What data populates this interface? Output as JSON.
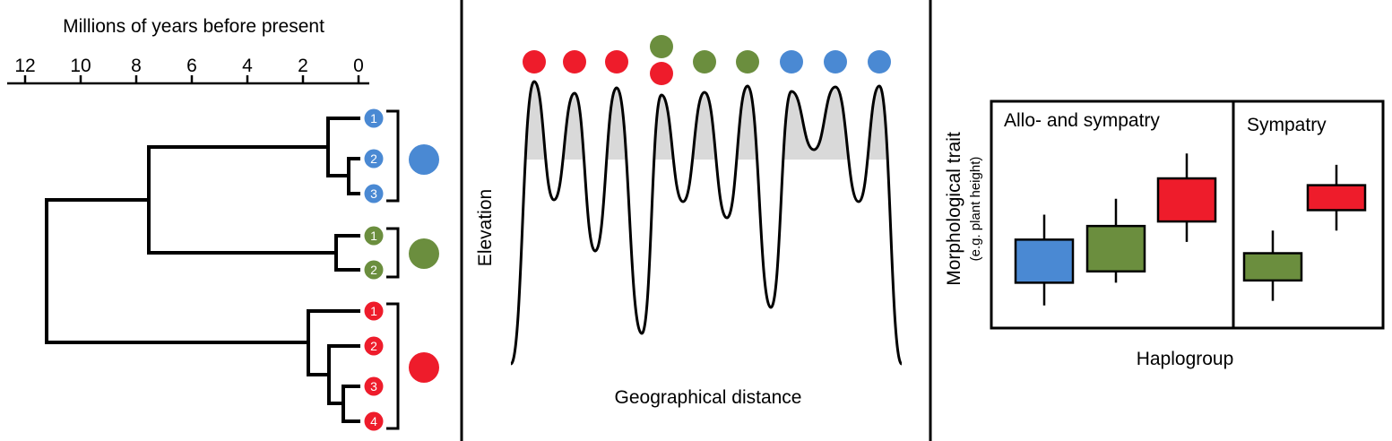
{
  "colors": {
    "blue": "#4a89d3",
    "green": "#6b8e3e",
    "red": "#ee1c2b",
    "ridge_fill": "#d9d9d9",
    "line": "#000000"
  },
  "tree": {
    "axis_title": "Millions of years before present",
    "axis_ticks": [
      "12",
      "10",
      "8",
      "6",
      "4",
      "2",
      "0"
    ],
    "groups": [
      {
        "name": "blue",
        "color_key": "blue",
        "tips": [
          "1",
          "2",
          "3"
        ]
      },
      {
        "name": "green",
        "color_key": "green",
        "tips": [
          "1",
          "2"
        ]
      },
      {
        "name": "red",
        "color_key": "red",
        "tips": [
          "1",
          "2",
          "3",
          "4"
        ]
      }
    ]
  },
  "landscape": {
    "ylabel": "Elevation",
    "xlabel": "Geographical distance",
    "peak_colors": [
      [
        "red"
      ],
      [
        "red"
      ],
      [
        "red"
      ],
      [
        "green",
        "red"
      ],
      [
        "green"
      ],
      [
        "green"
      ],
      [
        "blue"
      ],
      [
        "blue"
      ],
      [
        "blue"
      ]
    ]
  },
  "chart_data": {
    "type": "box",
    "ylabel": "Morphological trait",
    "ylabel_sub": "(e.g. plant height)",
    "xlabel": "Haplogroup",
    "panels": [
      {
        "title": "Allo- and sympatry",
        "boxes": [
          {
            "group": "blue",
            "low": 0.1,
            "q1": 0.2,
            "q3": 0.39,
            "high": 0.5
          },
          {
            "group": "green",
            "low": 0.2,
            "q1": 0.25,
            "q3": 0.45,
            "high": 0.57
          },
          {
            "group": "red",
            "low": 0.38,
            "q1": 0.47,
            "q3": 0.66,
            "high": 0.77
          }
        ]
      },
      {
        "title": "Sympatry",
        "boxes": [
          {
            "group": "green",
            "low": 0.12,
            "q1": 0.21,
            "q3": 0.33,
            "high": 0.43
          },
          {
            "group": "red",
            "low": 0.43,
            "q1": 0.52,
            "q3": 0.63,
            "high": 0.72
          }
        ]
      }
    ]
  }
}
